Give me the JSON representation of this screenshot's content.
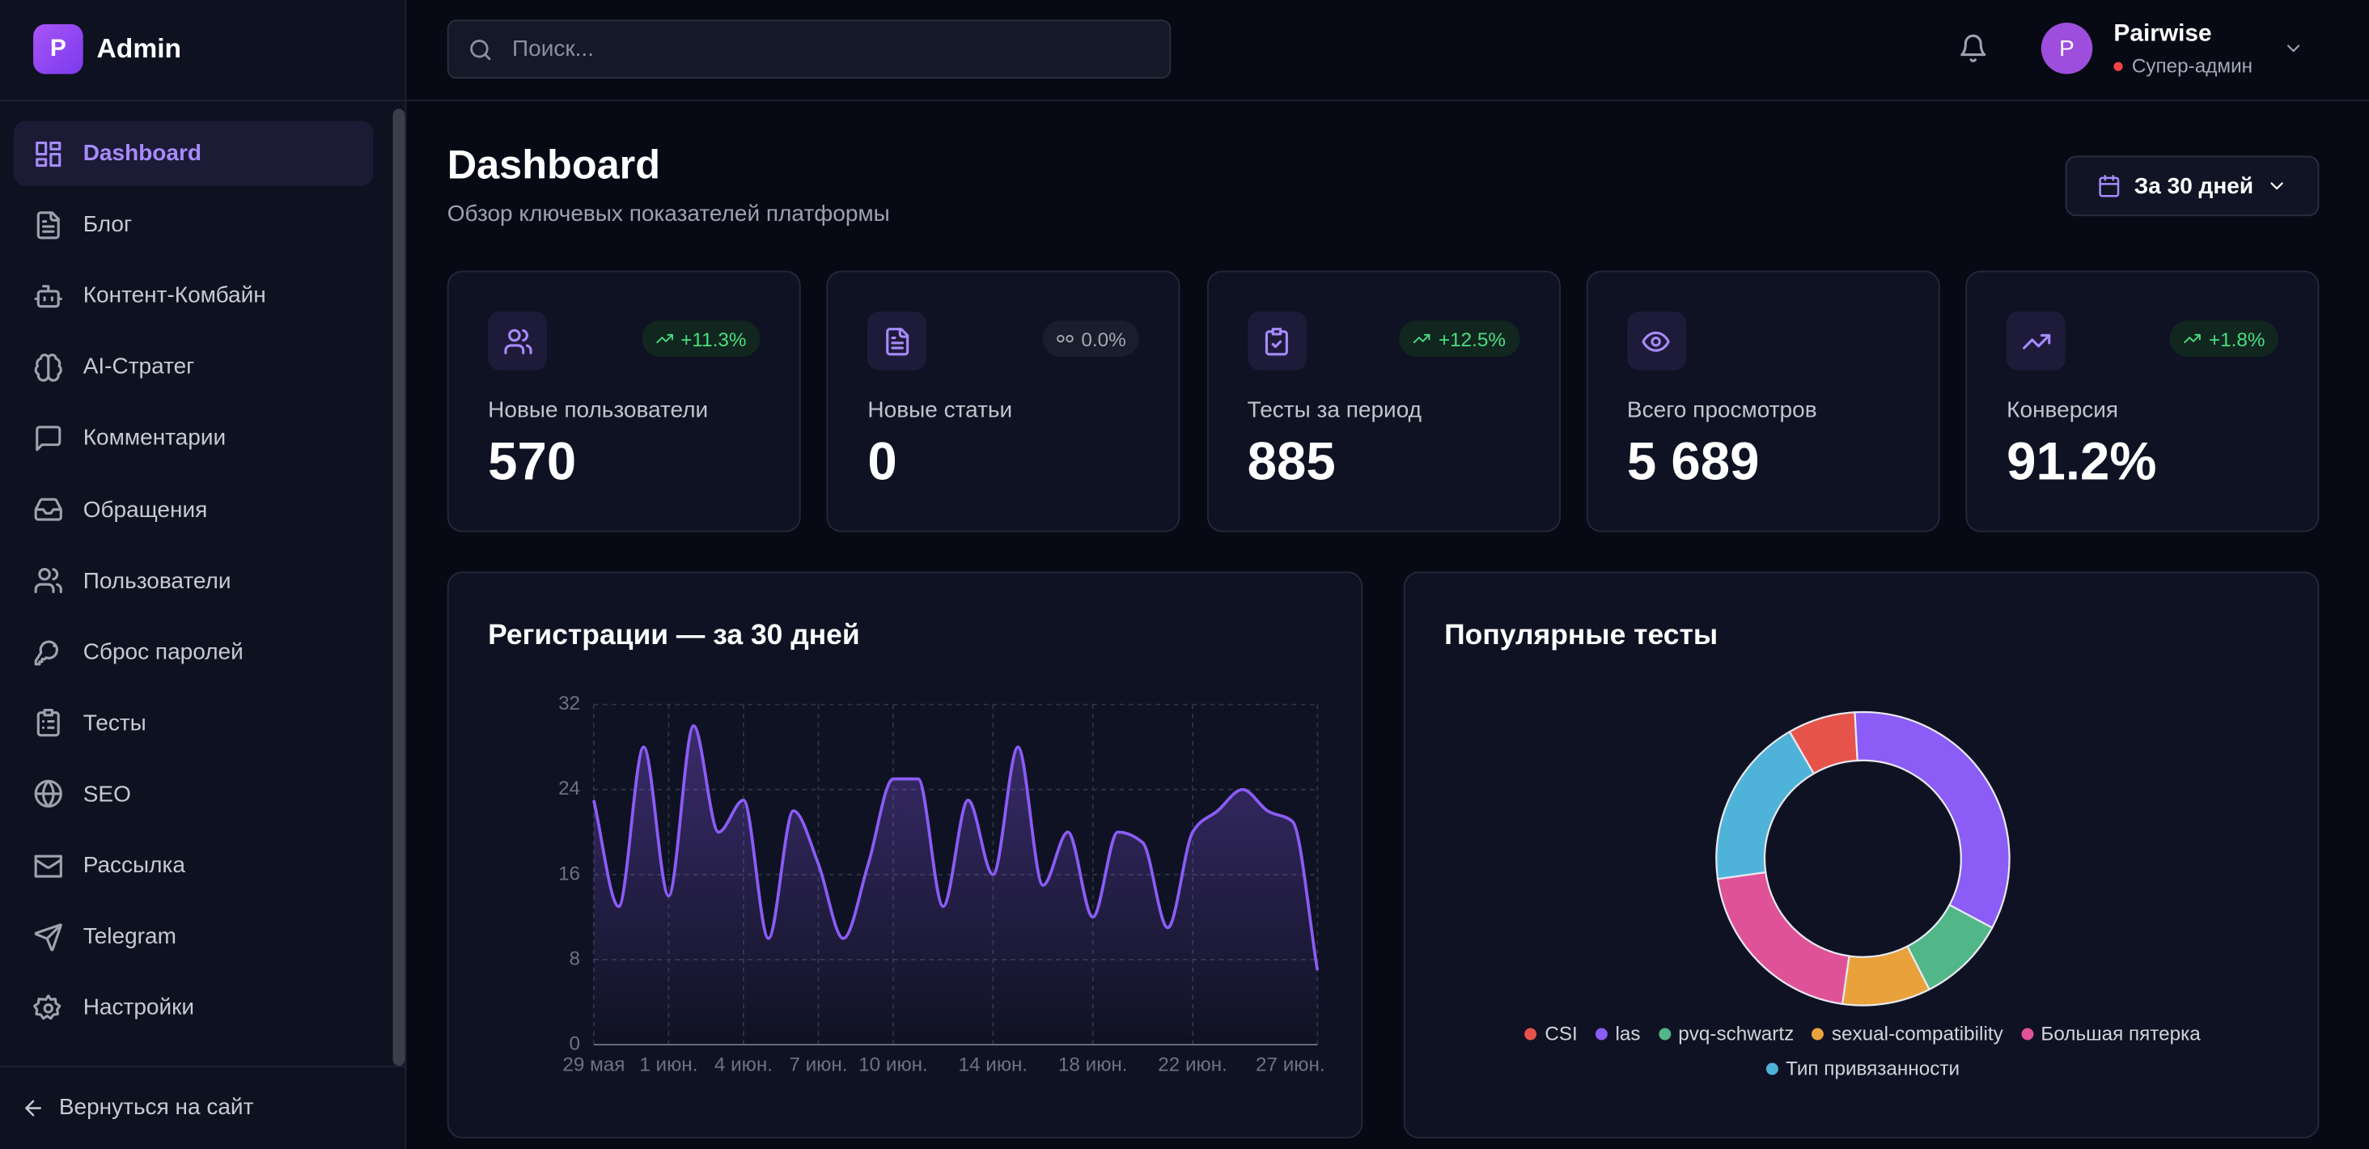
{
  "sidebar": {
    "brand_initial": "P",
    "brand": "Admin",
    "active_index": 0,
    "nav": [
      "Dashboard",
      "Блог",
      "Контент-Комбайн",
      "AI-Стратег",
      "Комментарии",
      "Обращения",
      "Пользователи",
      "Сброс паролей",
      "Тесты",
      "SEO",
      "Рассылка",
      "Telegram",
      "Настройки"
    ],
    "back": "Вернуться на сайт"
  },
  "header": {
    "search_placeholder": "Поиск...",
    "user": {
      "initial": "P",
      "name": "Pairwise",
      "role": "Супер-админ"
    }
  },
  "page": {
    "title": "Dashboard",
    "subtitle": "Обзор ключевых показателей платформы",
    "period": "За 30 дней"
  },
  "stats": [
    {
      "label": "Новые пользователи",
      "value": "570",
      "change": "+11.3%",
      "trend": "up"
    },
    {
      "label": "Новые статьи",
      "value": "0",
      "change": "0.0%",
      "trend": "flat"
    },
    {
      "label": "Тесты за период",
      "value": "885",
      "change": "+12.5%",
      "trend": "up"
    },
    {
      "label": "Всего просмотров",
      "value": "5 689"
    },
    {
      "label": "Конверсия",
      "value": "91.2%",
      "change": "+1.8%",
      "trend": "up"
    }
  ],
  "chart_data": [
    {
      "type": "line",
      "title": "Регистрации — за 30 дней",
      "color": "#8b5cf6",
      "grid": true,
      "categories": [
        "29 мая",
        null,
        null,
        "1 июн.",
        null,
        null,
        "4 июн.",
        null,
        null,
        "7 июн.",
        null,
        null,
        "10 июн.",
        null,
        null,
        null,
        "14 июн.",
        null,
        null,
        null,
        "18 июн.",
        null,
        null,
        null,
        "22 июн.",
        null,
        null,
        null,
        null,
        "27 июн."
      ],
      "values": [
        23,
        13,
        28,
        14,
        30,
        20,
        23,
        10,
        22,
        17,
        10,
        17,
        25,
        25,
        13,
        23,
        16,
        28,
        15,
        20,
        12,
        20,
        19,
        11,
        20,
        22,
        24,
        22,
        21,
        7
      ],
      "ylim": [
        0,
        32
      ],
      "yticks": [
        0,
        8,
        16,
        24,
        32
      ]
    },
    {
      "type": "pie",
      "title": "Популярные тесты",
      "donut": true,
      "legend": "bottom",
      "categories": [
        "CSI",
        "las",
        "pvq-schwartz",
        "sexual-compatibility",
        "Большая пятерка",
        "Тип привязанности"
      ],
      "values": [
        66,
        298,
        86,
        86,
        182,
        167
      ],
      "colors": [
        "#e5534b",
        "#8b5cf6",
        "#52b788",
        "#e9a23b",
        "#e05297",
        "#4fb3d9"
      ]
    }
  ]
}
